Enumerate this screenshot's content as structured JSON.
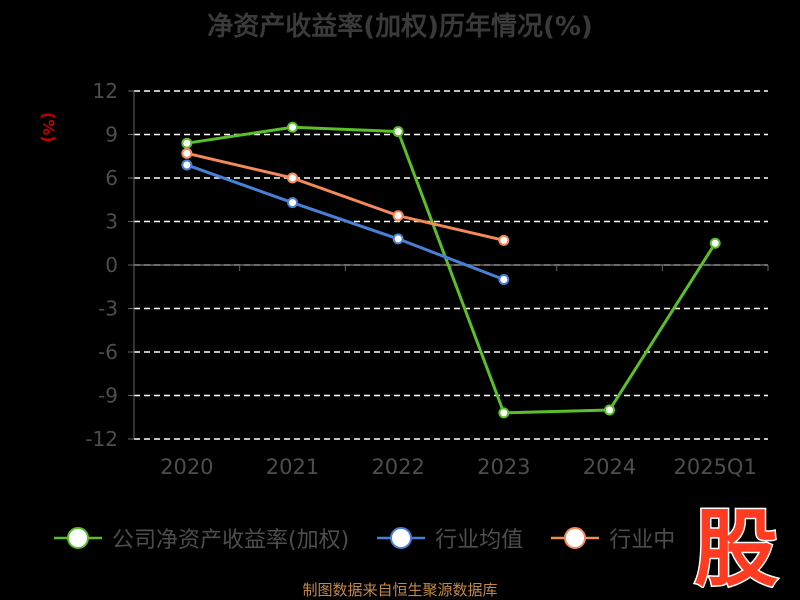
{
  "chart_data": {
    "type": "line",
    "title": "净资产收益率(加权)历年情况(%)",
    "ylabel": "(%)",
    "categories": [
      "2020",
      "2021",
      "2022",
      "2023",
      "2024",
      "2025Q1"
    ],
    "ylim": [
      -12,
      12
    ],
    "yticks": [
      12,
      9,
      6,
      3,
      0,
      -3,
      -6,
      -9,
      -12
    ],
    "grid": true,
    "legend_position": "bottom",
    "series": [
      {
        "name": "公司净资产收益率(加权)",
        "color": "#5bbf2a",
        "values": [
          8.4,
          9.5,
          9.2,
          -10.2,
          -10.0,
          1.5
        ]
      },
      {
        "name": "行业均值",
        "color": "#4a7fd6",
        "values": [
          6.9,
          4.3,
          1.8,
          -1.0,
          null,
          null
        ]
      },
      {
        "name": "行业中位数",
        "color": "#f4895a",
        "values": [
          7.7,
          6.0,
          3.4,
          1.7,
          null,
          null
        ]
      }
    ]
  },
  "legend_labels": [
    "公司净资产收益率(加权)",
    "行业均值",
    "行业中"
  ],
  "logo_text": "股",
  "footer": "制图数据来自恒生聚源数据库"
}
